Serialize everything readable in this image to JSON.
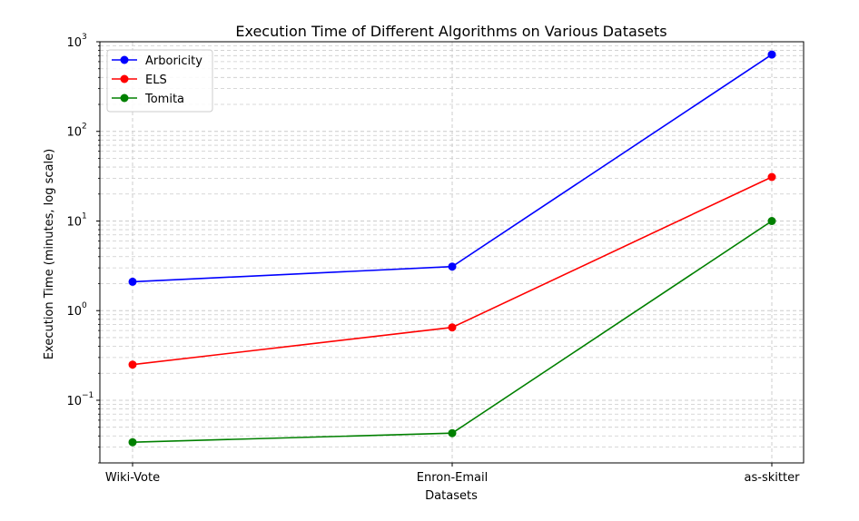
{
  "chart_data": {
    "type": "line",
    "title": "Execution Time of Different Algorithms on Various Datasets",
    "xlabel": "Datasets",
    "ylabel": "Execution Time (minutes, log scale)",
    "yscale": "log",
    "ylim": [
      0.02,
      1000
    ],
    "grid": true,
    "legend_position": "top-left",
    "categories": [
      "Wiki-Vote",
      "Enron-Email",
      "as-skitter"
    ],
    "y_ticks": [
      {
        "value": 0.1,
        "base": "10",
        "exp": "−1"
      },
      {
        "value": 1,
        "base": "10",
        "exp": "0"
      },
      {
        "value": 10,
        "base": "10",
        "exp": "1"
      },
      {
        "value": 100,
        "base": "10",
        "exp": "2"
      },
      {
        "value": 1000,
        "base": "10",
        "exp": "3"
      }
    ],
    "series": [
      {
        "name": "Arboricity",
        "color": "#0000ff",
        "values": [
          2.1,
          3.1,
          720
        ]
      },
      {
        "name": "ELS",
        "color": "#ff0000",
        "values": [
          0.25,
          0.65,
          31
        ]
      },
      {
        "name": "Tomita",
        "color": "#008000",
        "values": [
          0.034,
          0.043,
          10
        ]
      }
    ]
  }
}
